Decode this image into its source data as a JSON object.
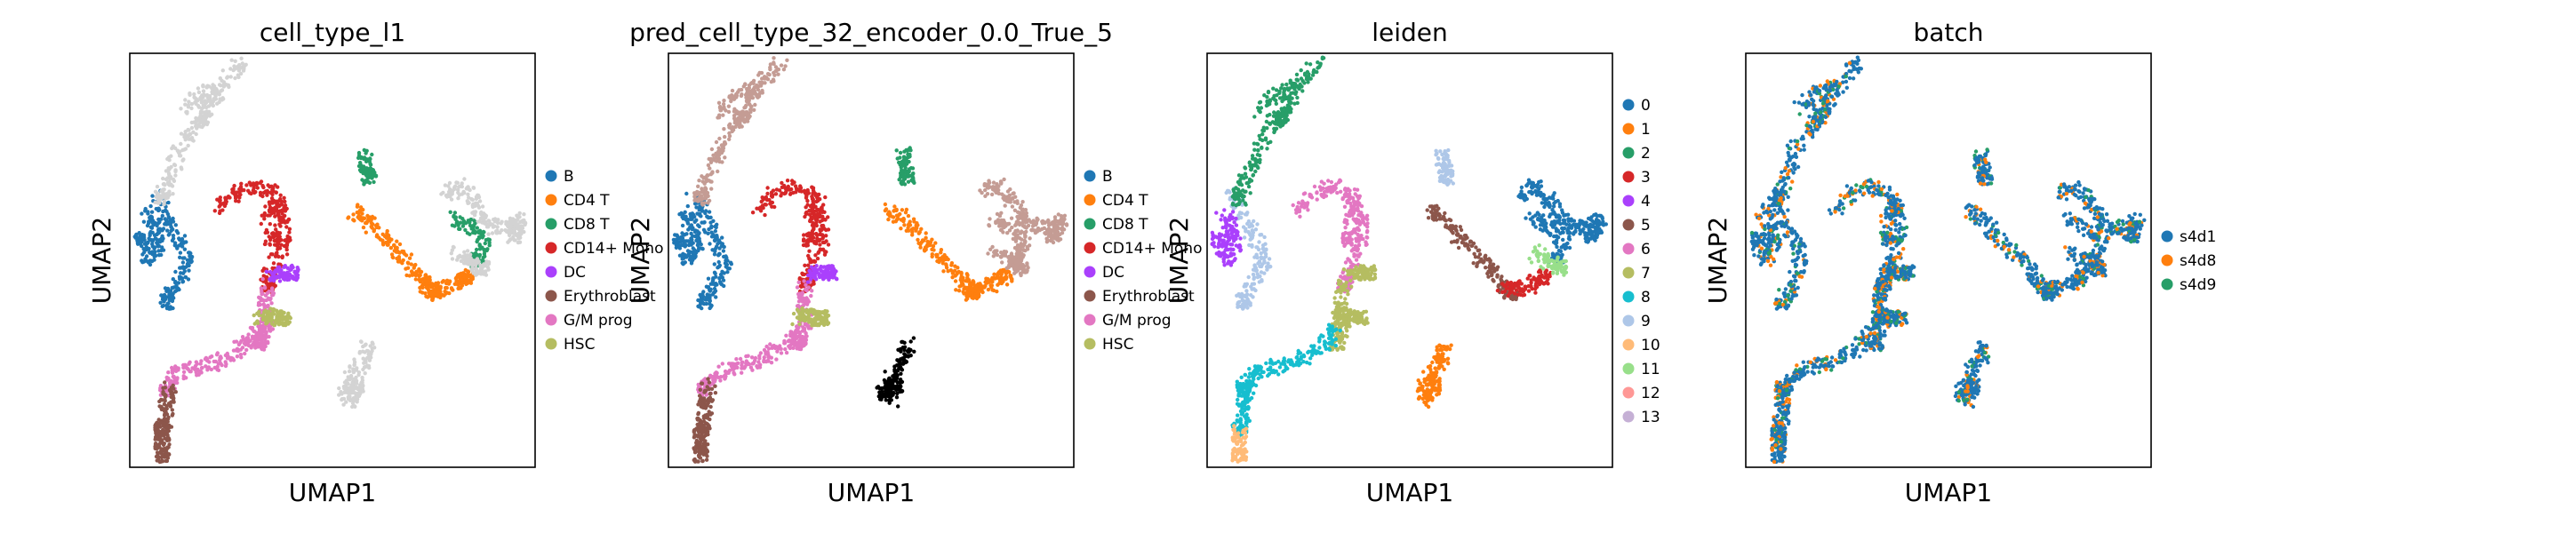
{
  "palettes": {
    "cell_type": [
      "#1f77b4",
      "#ff7f0e",
      "#279e68",
      "#d62728",
      "#aa40fc",
      "#8c564b",
      "#e377c2",
      "#b5bd61"
    ],
    "leiden": [
      "#1f77b4",
      "#ff7f0e",
      "#279e68",
      "#d62728",
      "#aa40fc",
      "#8c564b",
      "#e377c2",
      "#b5bd61",
      "#17becf",
      "#aec7e8",
      "#ffbb78",
      "#98df8a",
      "#ff9896",
      "#c5b0d5"
    ],
    "batch": [
      "#1f77b4",
      "#ff7f0e",
      "#279e68"
    ],
    "unassigned": "#d3d3d3",
    "pred_extra": "#c49c94"
  },
  "chart_data": [
    {
      "type": "scatter",
      "title": "cell_type_l1",
      "xlabel": "UMAP1",
      "ylabel": "UMAP2",
      "grid": false,
      "legend": "right",
      "color_by": "cell_type",
      "legend_entries": [
        "B",
        "CD4 T",
        "CD8 T",
        "CD14+ Mono",
        "DC",
        "Erythroblast",
        "G/M prog",
        "HSC"
      ]
    },
    {
      "type": "scatter",
      "title": "pred_cell_type_32_encoder_0.0_True_5",
      "xlabel": "UMAP1",
      "ylabel": "UMAP2",
      "grid": false,
      "legend": "right",
      "color_by": "pred",
      "legend_entries": [
        "B",
        "CD4 T",
        "CD8 T",
        "CD14+ Mono",
        "DC",
        "Erythroblast",
        "G/M prog",
        "HSC"
      ]
    },
    {
      "type": "scatter",
      "title": "leiden",
      "xlabel": "UMAP1",
      "ylabel": "UMAP2",
      "grid": false,
      "legend": "right",
      "color_by": "leiden",
      "legend_entries": [
        "0",
        "1",
        "2",
        "3",
        "4",
        "5",
        "6",
        "7",
        "8",
        "9",
        "10",
        "11",
        "12",
        "13"
      ]
    },
    {
      "type": "scatter",
      "title": "batch",
      "xlabel": "UMAP1",
      "ylabel": "UMAP2",
      "grid": false,
      "legend": "right",
      "color_by": "batch",
      "legend_entries": [
        "s4d1",
        "s4d8",
        "s4d9"
      ]
    }
  ],
  "clusters": [
    {
      "id": "b-upper",
      "ct": 0,
      "pred": 0,
      "leiden": 9,
      "pts": [
        [
          0.06,
          0.66
        ],
        [
          0.09,
          0.6
        ],
        [
          0.12,
          0.55
        ],
        [
          0.14,
          0.5
        ],
        [
          0.12,
          0.45
        ],
        [
          0.09,
          0.4
        ]
      ]
    },
    {
      "id": "b-core",
      "ct": 0,
      "pred": 0,
      "leiden": 4,
      "pts": [
        [
          0.04,
          0.62
        ],
        [
          0.06,
          0.58
        ],
        [
          0.07,
          0.54
        ],
        [
          0.05,
          0.5
        ],
        [
          0.03,
          0.55
        ]
      ]
    },
    {
      "id": "upper-arm",
      "ct": -1,
      "pred": 8,
      "leiden": 2,
      "pts": [
        [
          0.28,
          0.98
        ],
        [
          0.24,
          0.94
        ],
        [
          0.2,
          0.88
        ],
        [
          0.16,
          0.82
        ],
        [
          0.12,
          0.76
        ],
        [
          0.1,
          0.7
        ],
        [
          0.08,
          0.65
        ]
      ]
    },
    {
      "id": "upper-blob",
      "ct": -1,
      "pred": 8,
      "leiden": 2,
      "pts": [
        [
          0.13,
          0.86
        ],
        [
          0.17,
          0.9
        ],
        [
          0.22,
          0.92
        ],
        [
          0.18,
          0.84
        ]
      ]
    },
    {
      "id": "mono-arc",
      "ct": 3,
      "pred": 3,
      "leiden": 6,
      "pts": [
        [
          0.22,
          0.62
        ],
        [
          0.26,
          0.66
        ],
        [
          0.31,
          0.68
        ],
        [
          0.36,
          0.66
        ],
        [
          0.38,
          0.6
        ],
        [
          0.38,
          0.54
        ],
        [
          0.35,
          0.48
        ],
        [
          0.34,
          0.44
        ]
      ]
    },
    {
      "id": "mono-lump",
      "ct": 3,
      "pred": 3,
      "leiden": 6,
      "pts": [
        [
          0.34,
          0.6
        ],
        [
          0.37,
          0.64
        ],
        [
          0.35,
          0.55
        ]
      ]
    },
    {
      "id": "stem",
      "ct": 6,
      "pred": 6,
      "leiden": 7,
      "pts": [
        [
          0.34,
          0.44
        ],
        [
          0.33,
          0.4
        ],
        [
          0.34,
          0.36
        ],
        [
          0.33,
          0.33
        ],
        [
          0.32,
          0.3
        ]
      ]
    },
    {
      "id": "dc-tip",
      "ct": 4,
      "pred": 4,
      "leiden": 7,
      "pts": [
        [
          0.35,
          0.46
        ],
        [
          0.37,
          0.47
        ],
        [
          0.4,
          0.47
        ]
      ]
    },
    {
      "id": "hsc-knot",
      "ct": 7,
      "pred": 7,
      "leiden": 7,
      "pts": [
        [
          0.32,
          0.36
        ],
        [
          0.34,
          0.37
        ],
        [
          0.36,
          0.36
        ],
        [
          0.38,
          0.36
        ]
      ]
    },
    {
      "id": "lower-curve",
      "ct": 6,
      "pred": 6,
      "leiden": 8,
      "pts": [
        [
          0.32,
          0.33
        ],
        [
          0.29,
          0.3
        ],
        [
          0.25,
          0.27
        ],
        [
          0.2,
          0.25
        ],
        [
          0.15,
          0.24
        ],
        [
          0.11,
          0.22
        ],
        [
          0.09,
          0.19
        ]
      ]
    },
    {
      "id": "ery-low",
      "ct": 5,
      "pred": 5,
      "leiden": 8,
      "pts": [
        [
          0.1,
          0.2
        ],
        [
          0.09,
          0.16
        ],
        [
          0.09,
          0.12
        ],
        [
          0.08,
          0.09
        ]
      ]
    },
    {
      "id": "ery-tail",
      "ct": 5,
      "pred": 5,
      "leiden": 10,
      "pts": [
        [
          0.08,
          0.09
        ],
        [
          0.08,
          0.06
        ],
        [
          0.08,
          0.03
        ]
      ]
    },
    {
      "id": "cd8-blob",
      "ct": 2,
      "pred": 2,
      "leiden": 9,
      "pts": [
        [
          0.58,
          0.76
        ],
        [
          0.58,
          0.73
        ],
        [
          0.59,
          0.7
        ]
      ]
    },
    {
      "id": "t-main",
      "ct": 1,
      "pred": 1,
      "leiden": 5,
      "pts": [
        [
          0.55,
          0.62
        ],
        [
          0.58,
          0.6
        ],
        [
          0.62,
          0.56
        ],
        [
          0.66,
          0.52
        ],
        [
          0.7,
          0.48
        ],
        [
          0.73,
          0.44
        ],
        [
          0.75,
          0.42
        ]
      ]
    },
    {
      "id": "t-tail",
      "ct": 1,
      "pred": 1,
      "leiden": 3,
      "pts": [
        [
          0.73,
          0.44
        ],
        [
          0.76,
          0.43
        ],
        [
          0.8,
          0.44
        ],
        [
          0.83,
          0.46
        ]
      ]
    },
    {
      "id": "t-right",
      "ct": -1,
      "pred": 8,
      "leiden": 0,
      "pts": [
        [
          0.78,
          0.66
        ],
        [
          0.81,
          0.68
        ],
        [
          0.85,
          0.64
        ],
        [
          0.87,
          0.6
        ],
        [
          0.9,
          0.58
        ],
        [
          0.94,
          0.58
        ],
        [
          0.97,
          0.6
        ],
        [
          0.95,
          0.56
        ]
      ]
    },
    {
      "id": "t-right-2",
      "ct": 2,
      "pred": 8,
      "leiden": 0,
      "pts": [
        [
          0.8,
          0.6
        ],
        [
          0.84,
          0.58
        ],
        [
          0.88,
          0.55
        ],
        [
          0.86,
          0.5
        ]
      ]
    },
    {
      "id": "nk-blob",
      "ct": -1,
      "pred": 8,
      "leiden": 11,
      "pts": [
        [
          0.8,
          0.52
        ],
        [
          0.84,
          0.5
        ],
        [
          0.87,
          0.48
        ]
      ]
    },
    {
      "id": "mega",
      "ct": -1,
      "pred": 11,
      "leiden": 1,
      "pts": [
        [
          0.59,
          0.3
        ],
        [
          0.58,
          0.26
        ],
        [
          0.55,
          0.22
        ],
        [
          0.53,
          0.18
        ],
        [
          0.55,
          0.16
        ],
        [
          0.56,
          0.2
        ]
      ]
    }
  ]
}
